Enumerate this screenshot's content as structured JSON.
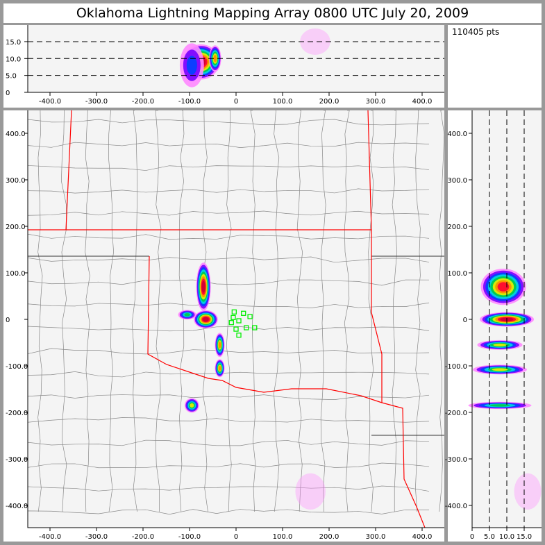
{
  "title": "Oklahoma Lightning Mapping Array   0800 UTC  July 20, 2009",
  "point_count": "110405 pts",
  "colors": {
    "state_border": "#ff0000",
    "county_border": "#888888",
    "station": "#00ee00",
    "background": "#f4f4f4",
    "frame": "#999999"
  },
  "chart_data": [
    {
      "type": "scatter",
      "panel": "east-west vs altitude",
      "xlim": [
        -450,
        450
      ],
      "ylim": [
        0,
        20
      ],
      "xticks": [
        "-400.0",
        "-300.0",
        "-200.0",
        "-100.0",
        "0",
        "100.0",
        "200.0",
        "300.0",
        "400.0"
      ],
      "yticks": [
        "0",
        "5.0",
        "10.0",
        "15.0"
      ],
      "gridlines_y": [
        5,
        10,
        15
      ],
      "clusters": [
        {
          "x": -75,
          "y": 9,
          "sx": 30,
          "sy": 4,
          "intensity": 1
        },
        {
          "x": -45,
          "y": 10,
          "sx": 10,
          "sy": 3,
          "intensity": 0.8
        },
        {
          "x": -95,
          "y": 8,
          "sx": 20,
          "sy": 5,
          "intensity": 0.3
        },
        {
          "x": 170,
          "y": 15,
          "sx": 25,
          "sy": 3,
          "intensity": 0.05
        }
      ]
    },
    {
      "type": "scatter",
      "panel": "plan view",
      "xlim": [
        -450,
        450
      ],
      "ylim": [
        -450,
        450
      ],
      "xticks": [
        "-400.0",
        "-300.0",
        "-200.0",
        "-100.0",
        "0",
        "100.0",
        "200.0",
        "300.0",
        "400.0"
      ],
      "yticks": [
        "400.0",
        "300.0",
        "200.0",
        "100.0",
        "0",
        "-100.0",
        "-200.0",
        "-300.0",
        "-400.0"
      ],
      "clusters": [
        {
          "x": -70,
          "y": 70,
          "sx": 12,
          "sy": 40,
          "intensity": 1
        },
        {
          "x": -65,
          "y": 0,
          "sx": 20,
          "sy": 15,
          "intensity": 1
        },
        {
          "x": -105,
          "y": 10,
          "sx": 15,
          "sy": 8,
          "intensity": 0.5
        },
        {
          "x": -35,
          "y": -55,
          "sx": 8,
          "sy": 20,
          "intensity": 0.8
        },
        {
          "x": -35,
          "y": -105,
          "sx": 8,
          "sy": 15,
          "intensity": 0.8
        },
        {
          "x": -95,
          "y": -185,
          "sx": 12,
          "sy": 12,
          "intensity": 0.7
        },
        {
          "x": 160,
          "y": -370,
          "sx": 25,
          "sy": 30,
          "intensity": 0.05
        }
      ],
      "stations": [
        [
          -4,
          16
        ],
        [
          16,
          13
        ],
        [
          30,
          6
        ],
        [
          -6,
          4
        ],
        [
          6,
          -3
        ],
        [
          -10,
          -7
        ],
        [
          22,
          -18
        ],
        [
          40,
          -18
        ],
        [
          0,
          -21
        ],
        [
          6,
          -34
        ]
      ]
    },
    {
      "type": "scatter",
      "panel": "altitude vs north-south",
      "xlim": [
        0,
        20
      ],
      "ylim": [
        -450,
        450
      ],
      "xticks": [
        "0",
        "5.0",
        "10.0",
        "15.0"
      ],
      "gridlines_x": [
        5,
        10,
        15
      ],
      "yticks": [
        "400.0",
        "300.0",
        "200.0",
        "100.0",
        "0",
        "-100.0",
        "-200.0",
        "-300.0",
        "-400.0"
      ],
      "clusters": [
        {
          "x": 9,
          "y": 70,
          "sx": 5,
          "sy": 30,
          "intensity": 0.9
        },
        {
          "x": 10,
          "y": 0,
          "sx": 6,
          "sy": 12,
          "intensity": 1
        },
        {
          "x": 8,
          "y": -55,
          "sx": 5,
          "sy": 8,
          "intensity": 0.7
        },
        {
          "x": 8,
          "y": -108,
          "sx": 6,
          "sy": 8,
          "intensity": 0.7
        },
        {
          "x": 8,
          "y": -185,
          "sx": 7,
          "sy": 6,
          "intensity": 0.6
        },
        {
          "x": 16,
          "y": -370,
          "sx": 3,
          "sy": 30,
          "intensity": 0.05
        }
      ]
    }
  ]
}
